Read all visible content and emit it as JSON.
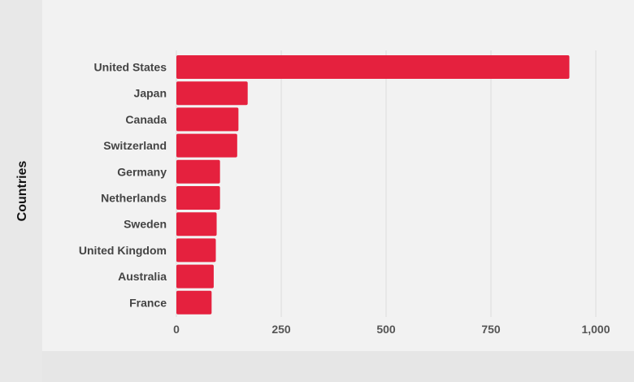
{
  "chart_data": {
    "type": "bar",
    "orientation": "horizontal",
    "title": "",
    "ylabel": "Countries",
    "xlabel": "",
    "categories": [
      "United States",
      "Japan",
      "Canada",
      "Switzerland",
      "Germany",
      "Netherlands",
      "Sweden",
      "United Kingdom",
      "Australia",
      "France"
    ],
    "values": [
      937,
      170,
      148,
      145,
      104,
      104,
      96,
      94,
      89,
      84
    ],
    "xlim": [
      0,
      1000
    ],
    "xticks": [
      0,
      250,
      500,
      750,
      1000
    ],
    "xtick_labels": [
      "0",
      "250",
      "500",
      "750",
      "1,000"
    ],
    "grid": "vertical",
    "bar_color": "#e5213e"
  }
}
